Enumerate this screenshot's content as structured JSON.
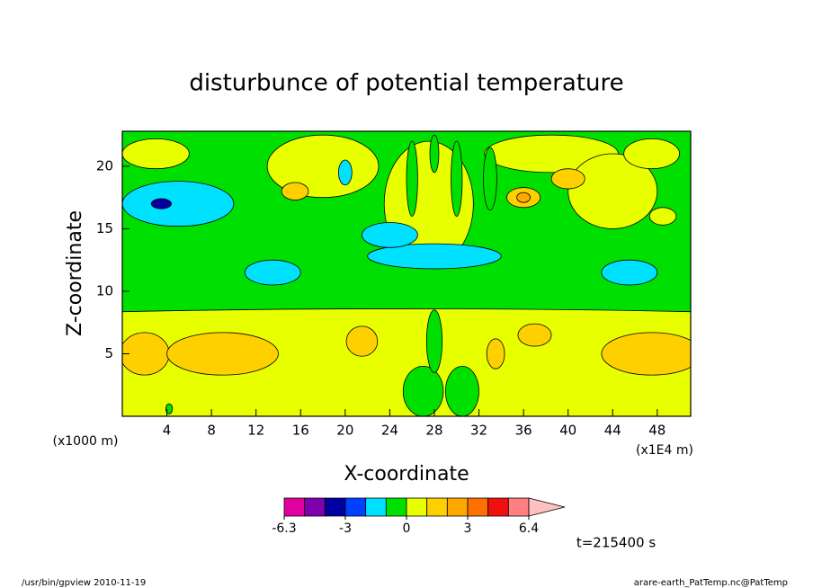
{
  "chart_data": {
    "type": "contour",
    "title": "disturbunce of potential temperature",
    "xlabel": "X-coordinate",
    "ylabel": "Z-coordinate",
    "xunit": "(x1E4 m)",
    "yunit": "(x1000 m)",
    "xlim": [
      0,
      51
    ],
    "ylim": [
      0,
      22.8
    ],
    "xticks": [
      4,
      8,
      12,
      16,
      20,
      24,
      28,
      32,
      36,
      40,
      44,
      48
    ],
    "yticks": [
      5,
      10,
      15,
      20
    ],
    "background_value": -0.5,
    "colorbar": {
      "ticks": [
        -6.3,
        -3,
        0,
        3,
        6.4
      ],
      "colors": [
        "#e000a0",
        "#8000b0",
        "#0000a0",
        "#0040ff",
        "#00e0ff",
        "#00e000",
        "#e8ff00",
        "#ffd000",
        "#ffa800",
        "#ff7000",
        "#f01010",
        "#ff8080",
        "#ffc0c0"
      ]
    },
    "regions": [
      {
        "x": 25.5,
        "z": 4.1,
        "rx": 80,
        "rz": 4.5,
        "value": 0.5
      },
      {
        "x": 2,
        "z": 5,
        "rx": 2.2,
        "rz": 1.7,
        "value": 1.5
      },
      {
        "x": 9,
        "z": 5,
        "rx": 5,
        "rz": 1.7,
        "value": 1.5
      },
      {
        "x": 47.5,
        "z": 5,
        "rx": 4.5,
        "rz": 1.7,
        "value": 1.5
      },
      {
        "x": 21.5,
        "z": 6,
        "rx": 1.4,
        "rz": 1.2,
        "value": 1.5
      },
      {
        "x": 37,
        "z": 6.5,
        "rx": 1.5,
        "rz": 0.9,
        "value": 1.5
      },
      {
        "x": 33.5,
        "z": 5,
        "rx": 0.8,
        "rz": 1.2,
        "value": 1.5
      },
      {
        "x": 27,
        "z": 2,
        "rx": 1.8,
        "rz": 2,
        "value": -0.5
      },
      {
        "x": 30.5,
        "z": 2,
        "rx": 1.5,
        "rz": 2,
        "value": -0.5
      },
      {
        "x": 28,
        "z": 6,
        "rx": 0.7,
        "rz": 2.5,
        "value": -0.5
      },
      {
        "x": 4.2,
        "z": 0.6,
        "rx": 0.3,
        "rz": 0.4,
        "value": -0.5
      },
      {
        "x": 3,
        "z": 21,
        "rx": 3,
        "rz": 1.2,
        "value": 0.5
      },
      {
        "x": 18,
        "z": 20,
        "rx": 5,
        "rz": 2.5,
        "value": 0.5
      },
      {
        "x": 38.5,
        "z": 21,
        "rx": 6,
        "rz": 1.5,
        "value": 0.5
      },
      {
        "x": 27.5,
        "z": 17,
        "rx": 4,
        "rz": 5,
        "value": 0.5
      },
      {
        "x": 44,
        "z": 18,
        "rx": 4,
        "rz": 3,
        "value": 0.5
      },
      {
        "x": 48.5,
        "z": 16,
        "rx": 1.2,
        "rz": 0.7,
        "value": 0.5
      },
      {
        "x": 47.5,
        "z": 21,
        "rx": 2.5,
        "rz": 1.2,
        "value": 0.5
      },
      {
        "x": 15.5,
        "z": 18,
        "rx": 1.2,
        "rz": 0.7,
        "value": 1.5
      },
      {
        "x": 36,
        "z": 17.5,
        "rx": 1.5,
        "rz": 0.8,
        "value": 1.5
      },
      {
        "x": 40,
        "z": 19,
        "rx": 1.5,
        "rz": 0.8,
        "value": 1.5
      },
      {
        "x": 36,
        "z": 17.5,
        "rx": 0.6,
        "rz": 0.4,
        "value": 2.5
      },
      {
        "x": 26,
        "z": 19,
        "rx": 0.5,
        "rz": 3,
        "value": -0.5
      },
      {
        "x": 30,
        "z": 19,
        "rx": 0.5,
        "rz": 3,
        "value": -0.5
      },
      {
        "x": 28,
        "z": 21,
        "rx": 0.4,
        "rz": 1.5,
        "value": -0.5
      },
      {
        "x": 33,
        "z": 19,
        "rx": 0.6,
        "rz": 2.5,
        "value": -0.5
      },
      {
        "x": 5,
        "z": 17,
        "rx": 5,
        "rz": 1.8,
        "value": -1.5
      },
      {
        "x": 13.5,
        "z": 11.5,
        "rx": 2.5,
        "rz": 1,
        "value": -1.5
      },
      {
        "x": 28,
        "z": 12.8,
        "rx": 6,
        "rz": 1,
        "value": -1.5
      },
      {
        "x": 45.5,
        "z": 11.5,
        "rx": 2.5,
        "rz": 1,
        "value": -1.5
      },
      {
        "x": 24,
        "z": 14.5,
        "rx": 2.5,
        "rz": 1,
        "value": -1.5
      },
      {
        "x": 20,
        "z": 19.5,
        "rx": 0.6,
        "rz": 1,
        "value": -1.5
      },
      {
        "x": 3.5,
        "z": 17,
        "rx": 0.9,
        "rz": 0.4,
        "value": -3.5
      }
    ],
    "time_label": "t=215400 s",
    "footer_left": "/usr/bin/gpview  2010-11-19",
    "footer_right": "arare-earth_PatTemp.nc@PatTemp"
  }
}
